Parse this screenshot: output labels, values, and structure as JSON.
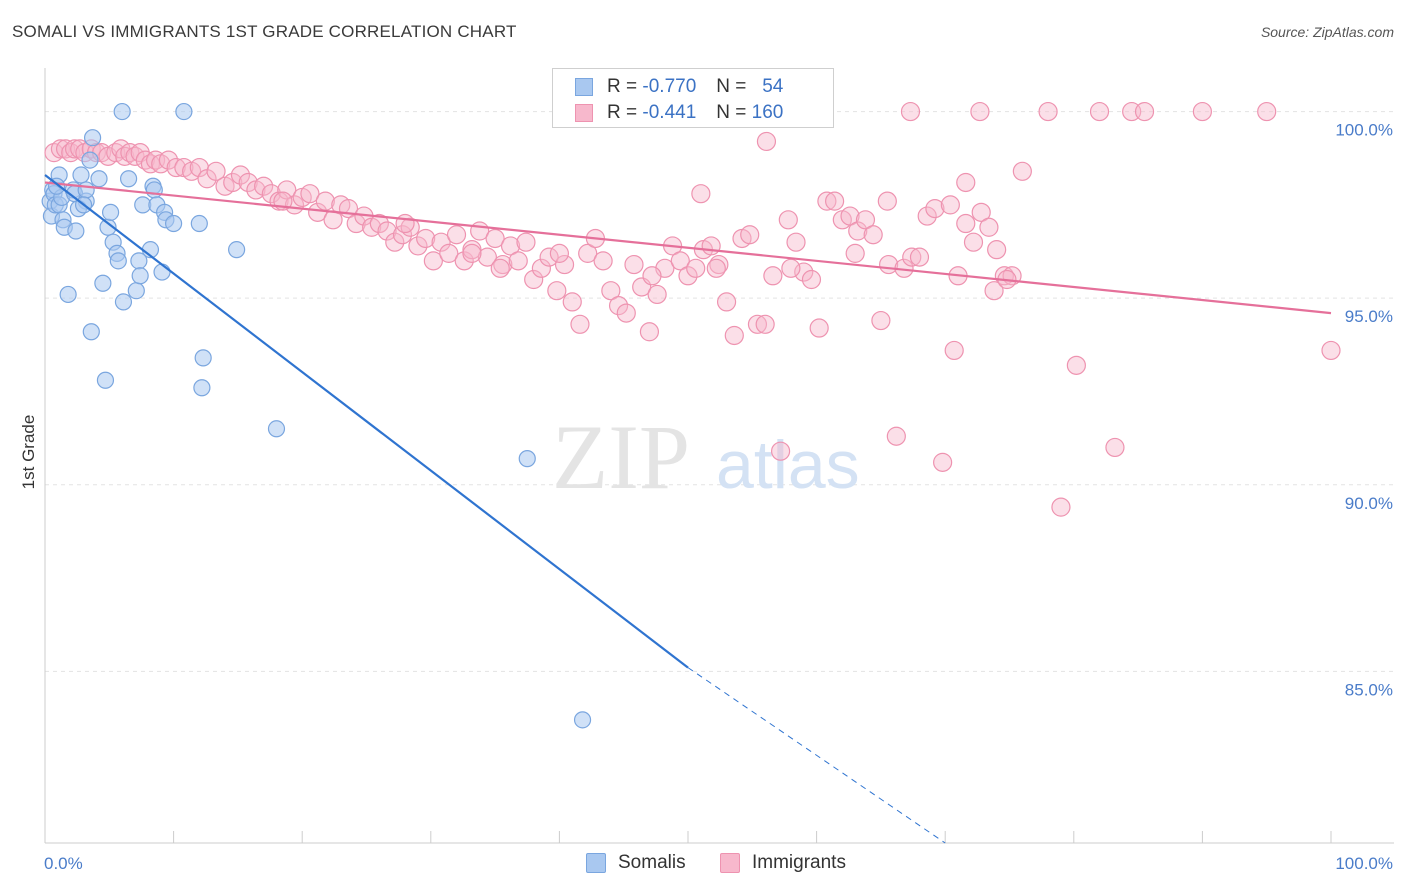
{
  "title": "SOMALI VS IMMIGRANTS 1ST GRADE CORRELATION CHART",
  "source": "Source: ZipAtlas.com",
  "watermark": {
    "zip": "ZIP",
    "atlas": "atlas"
  },
  "legend": {
    "rows": [
      {
        "r_label": "R =",
        "r_value": "-0.770",
        "n_label": "N =",
        "n_value": "54"
      },
      {
        "r_label": "R =",
        "r_value": "-0.441",
        "n_label": "N =",
        "n_value": "160"
      }
    ]
  },
  "bottom_legend": [
    "Somalis",
    "Immigrants"
  ],
  "colors": {
    "somali_fill": "#a9c8f0",
    "somali_stroke": "#7aa6df",
    "somali_line": "#2f74d0",
    "immigrant_fill": "#f7b8cc",
    "immigrant_stroke": "#ee93b0",
    "immigrant_line": "#e5709a",
    "axis_label": "#4a7cc9",
    "grid": "#e3e3e3"
  },
  "chart_data": {
    "type": "scatter",
    "title": "SOMALI VS IMMIGRANTS 1ST GRADE CORRELATION CHART",
    "xlabel": "",
    "ylabel": "1st Grade",
    "xlim": [
      0,
      100
    ],
    "ylim": [
      80.4,
      100.9
    ],
    "x_tick_labels": [
      "0.0%",
      "100.0%"
    ],
    "y_ticks": [
      100,
      95,
      90,
      85
    ],
    "y_tick_labels": [
      "100.0%",
      "95.0%",
      "90.0%",
      "85.0%"
    ],
    "grid": "horizontal dashed",
    "legend_position": "top-center",
    "series": [
      {
        "name": "Somalis",
        "points": [
          [
            0.4,
            97.6
          ],
          [
            0.5,
            97.2
          ],
          [
            0.6,
            97.9
          ],
          [
            0.7,
            97.8
          ],
          [
            0.8,
            97.5
          ],
          [
            1.1,
            97.5
          ],
          [
            1.1,
            98.3
          ],
          [
            1.3,
            97.7
          ],
          [
            1.4,
            97.1
          ],
          [
            1.5,
            96.9
          ],
          [
            1.8,
            95.1
          ],
          [
            2.2,
            97.9
          ],
          [
            2.3,
            97.8
          ],
          [
            2.4,
            96.8
          ],
          [
            2.8,
            98.3
          ],
          [
            3.2,
            97.6
          ],
          [
            3.5,
            98.7
          ],
          [
            3.7,
            99.3
          ],
          [
            3.6,
            94.1
          ],
          [
            3.2,
            97.9
          ],
          [
            4.2,
            98.2
          ],
          [
            4.5,
            95.4
          ],
          [
            4.7,
            92.8
          ],
          [
            4.9,
            96.9
          ],
          [
            5.1,
            97.3
          ],
          [
            5.3,
            96.5
          ],
          [
            5.6,
            96.2
          ],
          [
            5.7,
            96.0
          ],
          [
            6.0,
            100.0
          ],
          [
            6.1,
            94.9
          ],
          [
            6.5,
            98.2
          ],
          [
            7.1,
            95.2
          ],
          [
            7.3,
            96.0
          ],
          [
            7.4,
            95.6
          ],
          [
            7.6,
            97.5
          ],
          [
            8.2,
            96.3
          ],
          [
            8.4,
            98.0
          ],
          [
            8.5,
            97.9
          ],
          [
            8.7,
            97.5
          ],
          [
            9.1,
            95.7
          ],
          [
            9.3,
            97.3
          ],
          [
            9.4,
            97.1
          ],
          [
            10.0,
            97.0
          ],
          [
            10.8,
            100.0
          ],
          [
            12.0,
            97.0
          ],
          [
            12.3,
            93.4
          ],
          [
            12.2,
            92.6
          ],
          [
            14.9,
            96.3
          ],
          [
            18.0,
            91.5
          ],
          [
            37.5,
            90.7
          ],
          [
            41.8,
            83.7
          ],
          [
            2.6,
            97.4
          ],
          [
            0.9,
            98.0
          ],
          [
            3.0,
            97.5
          ]
        ],
        "trend": {
          "x": [
            0,
            50
          ],
          "y": [
            98.3,
            85.1
          ],
          "dashed_to": [
            70,
            80.4
          ]
        }
      },
      {
        "name": "Immigrants",
        "points": [
          [
            0.7,
            98.9
          ],
          [
            1.2,
            99.0
          ],
          [
            1.6,
            99.0
          ],
          [
            2.0,
            98.9
          ],
          [
            2.3,
            99.0
          ],
          [
            2.7,
            99.0
          ],
          [
            3.1,
            98.9
          ],
          [
            3.6,
            99.0
          ],
          [
            4.0,
            98.9
          ],
          [
            4.4,
            98.9
          ],
          [
            4.9,
            98.8
          ],
          [
            5.5,
            98.9
          ],
          [
            5.9,
            99.0
          ],
          [
            6.2,
            98.8
          ],
          [
            6.6,
            98.9
          ],
          [
            7.0,
            98.8
          ],
          [
            7.4,
            98.9
          ],
          [
            7.8,
            98.7
          ],
          [
            8.2,
            98.6
          ],
          [
            8.6,
            98.7
          ],
          [
            9.0,
            98.6
          ],
          [
            9.6,
            98.7
          ],
          [
            10.2,
            98.5
          ],
          [
            10.8,
            98.5
          ],
          [
            11.4,
            98.4
          ],
          [
            12.0,
            98.5
          ],
          [
            12.6,
            98.2
          ],
          [
            13.3,
            98.4
          ],
          [
            14.0,
            98.0
          ],
          [
            14.6,
            98.1
          ],
          [
            15.2,
            98.3
          ],
          [
            15.8,
            98.1
          ],
          [
            16.4,
            97.9
          ],
          [
            17.0,
            98.0
          ],
          [
            17.6,
            97.8
          ],
          [
            18.2,
            97.6
          ],
          [
            18.8,
            97.9
          ],
          [
            19.4,
            97.5
          ],
          [
            20.0,
            97.7
          ],
          [
            20.6,
            97.8
          ],
          [
            21.2,
            97.3
          ],
          [
            21.8,
            97.6
          ],
          [
            22.4,
            97.1
          ],
          [
            23.0,
            97.5
          ],
          [
            23.6,
            97.4
          ],
          [
            24.2,
            97.0
          ],
          [
            24.8,
            97.2
          ],
          [
            25.4,
            96.9
          ],
          [
            26.0,
            97.0
          ],
          [
            26.6,
            96.8
          ],
          [
            27.2,
            96.5
          ],
          [
            27.8,
            96.7
          ],
          [
            28.4,
            96.9
          ],
          [
            29.0,
            96.4
          ],
          [
            29.6,
            96.6
          ],
          [
            30.2,
            96.0
          ],
          [
            30.8,
            96.5
          ],
          [
            31.4,
            96.2
          ],
          [
            32.0,
            96.7
          ],
          [
            32.6,
            96.0
          ],
          [
            33.2,
            96.3
          ],
          [
            33.8,
            96.8
          ],
          [
            34.4,
            96.1
          ],
          [
            35.0,
            96.6
          ],
          [
            35.6,
            95.9
          ],
          [
            36.2,
            96.4
          ],
          [
            36.8,
            96.0
          ],
          [
            37.4,
            96.5
          ],
          [
            38.0,
            95.5
          ],
          [
            38.6,
            95.8
          ],
          [
            39.2,
            96.1
          ],
          [
            39.8,
            95.2
          ],
          [
            40.4,
            95.9
          ],
          [
            41.0,
            94.9
          ],
          [
            41.6,
            94.3
          ],
          [
            42.2,
            96.2
          ],
          [
            42.8,
            96.6
          ],
          [
            43.4,
            96.0
          ],
          [
            44.0,
            95.2
          ],
          [
            44.6,
            94.8
          ],
          [
            45.2,
            94.6
          ],
          [
            45.8,
            95.9
          ],
          [
            46.4,
            95.3
          ],
          [
            47.0,
            94.1
          ],
          [
            47.6,
            95.1
          ],
          [
            48.2,
            95.8
          ],
          [
            48.8,
            96.4
          ],
          [
            49.4,
            96.0
          ],
          [
            50.0,
            95.6
          ],
          [
            50.6,
            95.8
          ],
          [
            51.2,
            96.3
          ],
          [
            51.8,
            96.4
          ],
          [
            52.4,
            95.9
          ],
          [
            53.0,
            94.9
          ],
          [
            53.6,
            94.0
          ],
          [
            54.2,
            96.6
          ],
          [
            54.8,
            96.7
          ],
          [
            55.4,
            94.3
          ],
          [
            56.0,
            94.3
          ],
          [
            56.6,
            95.6
          ],
          [
            57.2,
            90.9
          ],
          [
            57.8,
            97.1
          ],
          [
            58.4,
            96.5
          ],
          [
            59.0,
            95.7
          ],
          [
            59.6,
            95.5
          ],
          [
            60.2,
            94.2
          ],
          [
            60.8,
            97.6
          ],
          [
            61.4,
            97.6
          ],
          [
            62.0,
            97.1
          ],
          [
            62.6,
            97.2
          ],
          [
            63.2,
            96.8
          ],
          [
            63.8,
            97.1
          ],
          [
            64.4,
            96.7
          ],
          [
            65.0,
            94.4
          ],
          [
            65.6,
            95.9
          ],
          [
            66.2,
            91.3
          ],
          [
            66.8,
            95.8
          ],
          [
            67.4,
            96.1
          ],
          [
            68.0,
            96.1
          ],
          [
            68.6,
            97.2
          ],
          [
            69.2,
            97.4
          ],
          [
            69.8,
            90.6
          ],
          [
            70.4,
            97.5
          ],
          [
            71.0,
            95.6
          ],
          [
            71.6,
            98.1
          ],
          [
            72.2,
            96.5
          ],
          [
            72.8,
            97.3
          ],
          [
            73.4,
            96.9
          ],
          [
            74.0,
            96.3
          ],
          [
            74.6,
            95.6
          ],
          [
            75.2,
            95.6
          ],
          [
            76.0,
            98.4
          ],
          [
            78.0,
            100.0
          ],
          [
            82.0,
            100.0
          ],
          [
            84.5,
            100.0
          ],
          [
            85.5,
            100.0
          ],
          [
            80.2,
            93.2
          ],
          [
            79.0,
            89.4
          ],
          [
            83.2,
            91.0
          ],
          [
            70.7,
            93.6
          ],
          [
            100.0,
            93.6
          ],
          [
            90.0,
            100.0
          ],
          [
            95.0,
            100.0
          ],
          [
            67.3,
            100.0
          ],
          [
            72.7,
            100.0
          ],
          [
            56.1,
            99.2
          ],
          [
            71.6,
            97.0
          ],
          [
            65.5,
            97.6
          ],
          [
            35.4,
            95.8
          ],
          [
            18.5,
            97.6
          ],
          [
            28.0,
            97.0
          ],
          [
            33.2,
            96.2
          ],
          [
            40.0,
            96.2
          ],
          [
            47.2,
            95.6
          ],
          [
            52.2,
            95.8
          ],
          [
            58.0,
            95.8
          ],
          [
            63.0,
            96.2
          ],
          [
            73.8,
            95.2
          ],
          [
            74.8,
            95.5
          ],
          [
            51.0,
            97.8
          ]
        ],
        "trend": {
          "x": [
            0,
            100
          ],
          "y": [
            98.1,
            94.6
          ]
        }
      }
    ]
  }
}
